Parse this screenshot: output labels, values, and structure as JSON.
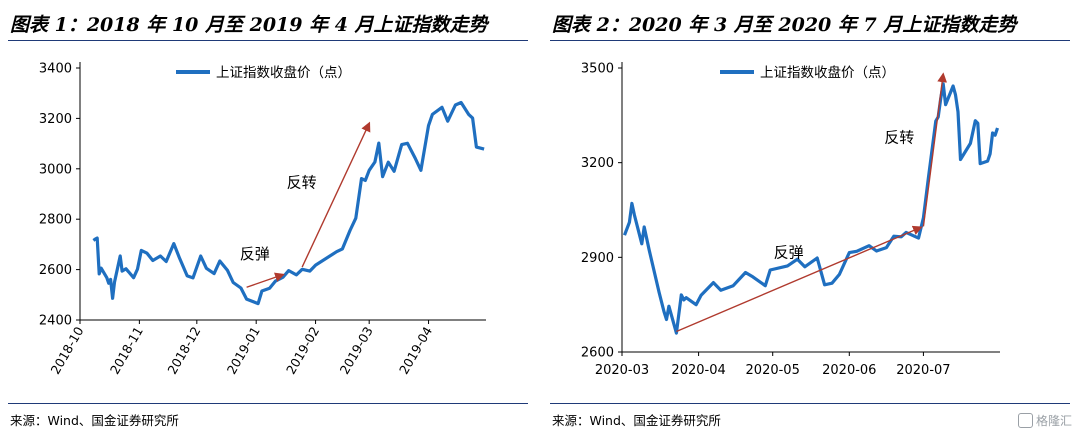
{
  "panels": [
    {
      "title": "图表 1：2018 年 10 月至 2019 年 4 月上证指数走势",
      "source": "来源：Wind、国金证券研究所"
    },
    {
      "title": "图表 2：2020 年 3 月至 2020 年 7 月上证指数走势",
      "source": "来源：Wind、国金证券研究所"
    }
  ],
  "watermark": "格隆汇",
  "chart_data": [
    {
      "type": "line",
      "legend": "上证指数收盘价（点）",
      "legend_position": "top-center",
      "color": "#1f6fc0",
      "annotation_color": "#b03a2e",
      "x_ticks": [
        "2018-10",
        "2018-11",
        "2018-12",
        "2019-01",
        "2019-02",
        "2019-03",
        "2019-04"
      ],
      "y_ticks": [
        2400,
        2600,
        2800,
        3000,
        3200,
        3400
      ],
      "ylim": [
        2400,
        3400
      ],
      "series": [
        {
          "name": "上证指数收盘价（点）",
          "x": [
            "2018-10-08",
            "2018-10-09",
            "2018-10-10",
            "2018-10-11",
            "2018-10-12",
            "2018-10-15",
            "2018-10-16",
            "2018-10-17",
            "2018-10-18",
            "2018-10-19",
            "2018-10-22",
            "2018-10-23",
            "2018-10-25",
            "2018-10-29",
            "2018-10-31",
            "2018-11-02",
            "2018-11-05",
            "2018-11-08",
            "2018-11-12",
            "2018-11-15",
            "2018-11-19",
            "2018-11-22",
            "2018-11-26",
            "2018-11-29",
            "2018-12-03",
            "2018-12-06",
            "2018-12-10",
            "2018-12-13",
            "2018-12-17",
            "2018-12-20",
            "2018-12-24",
            "2018-12-27",
            "2019-01-02",
            "2019-01-04",
            "2019-01-08",
            "2019-01-11",
            "2019-01-15",
            "2019-01-18",
            "2019-01-22",
            "2019-01-25",
            "2019-01-29",
            "2019-02-01",
            "2019-02-12",
            "2019-02-15",
            "2019-02-19",
            "2019-02-22",
            "2019-02-25",
            "2019-02-27",
            "2019-03-01",
            "2019-03-04",
            "2019-03-06",
            "2019-03-08",
            "2019-03-11",
            "2019-03-14",
            "2019-03-18",
            "2019-03-21",
            "2019-03-25",
            "2019-03-28",
            "2019-04-01",
            "2019-04-03",
            "2019-04-08",
            "2019-04-11",
            "2019-04-15",
            "2019-04-18",
            "2019-04-22",
            "2019-04-24",
            "2019-04-26",
            "2019-04-30"
          ],
          "y": [
            2716,
            2721,
            2725,
            2583,
            2606,
            2568,
            2546,
            2561,
            2486,
            2550,
            2654,
            2594,
            2603,
            2568,
            2602,
            2676,
            2665,
            2636,
            2654,
            2632,
            2703,
            2645,
            2575,
            2567,
            2654,
            2605,
            2584,
            2634,
            2597,
            2549,
            2527,
            2483,
            2465,
            2515,
            2526,
            2554,
            2570,
            2596,
            2579,
            2601,
            2594,
            2618,
            2671,
            2682,
            2755,
            2804,
            2961,
            2954,
            2994,
            3027,
            3102,
            2969,
            3026,
            2990,
            3096,
            3101,
            3043,
            2994,
            3171,
            3216,
            3244,
            3189,
            3253,
            3263,
            3215,
            3201,
            3086,
            3078
          ]
        }
      ],
      "annotations": [
        {
          "label": "反弹",
          "from": [
            "2018-12-27",
            2530
          ],
          "to": [
            "2019-01-15",
            2580
          ]
        },
        {
          "label": "反转",
          "from": [
            "2019-01-25",
            2610
          ],
          "to": [
            "2019-03-01",
            3180
          ]
        }
      ]
    },
    {
      "type": "line",
      "legend": "上证指数收盘价（点）",
      "legend_position": "top-center",
      "color": "#1f6fc0",
      "annotation_color": "#b03a2e",
      "x_ticks": [
        "2020-03",
        "2020-04",
        "2020-05",
        "2020-06",
        "2020-07"
      ],
      "y_ticks": [
        2600,
        2900,
        3200,
        3500
      ],
      "ylim": [
        2600,
        3500
      ],
      "series": [
        {
          "name": "上证指数收盘价（点）",
          "x": [
            "2020-03-02",
            "2020-03-04",
            "2020-03-05",
            "2020-03-06",
            "2020-03-09",
            "2020-03-10",
            "2020-03-12",
            "2020-03-16",
            "2020-03-18",
            "2020-03-19",
            "2020-03-20",
            "2020-03-23",
            "2020-03-25",
            "2020-03-26",
            "2020-03-27",
            "2020-03-31",
            "2020-04-02",
            "2020-04-07",
            "2020-04-10",
            "2020-04-15",
            "2020-04-20",
            "2020-04-23",
            "2020-04-28",
            "2020-04-30",
            "2020-05-07",
            "2020-05-11",
            "2020-05-14",
            "2020-05-19",
            "2020-05-22",
            "2020-05-25",
            "2020-05-28",
            "2020-06-01",
            "2020-06-04",
            "2020-06-09",
            "2020-06-12",
            "2020-06-16",
            "2020-06-19",
            "2020-06-22",
            "2020-06-24",
            "2020-06-29",
            "2020-07-01",
            "2020-07-03",
            "2020-07-06",
            "2020-07-07",
            "2020-07-08",
            "2020-07-09",
            "2020-07-10",
            "2020-07-13",
            "2020-07-14",
            "2020-07-15",
            "2020-07-16",
            "2020-07-20",
            "2020-07-22",
            "2020-07-23",
            "2020-07-24",
            "2020-07-27",
            "2020-07-28",
            "2020-07-29",
            "2020-07-30",
            "2020-07-31"
          ],
          "y": [
            2970,
            3011,
            3071,
            3034,
            2943,
            2996,
            2923,
            2789,
            2728,
            2703,
            2745,
            2660,
            2781,
            2765,
            2772,
            2750,
            2780,
            2820,
            2796,
            2810,
            2852,
            2838,
            2810,
            2860,
            2873,
            2894,
            2870,
            2898,
            2813,
            2818,
            2846,
            2915,
            2919,
            2937,
            2920,
            2931,
            2967,
            2965,
            2979,
            2961,
            3025,
            3152,
            3332,
            3345,
            3403,
            3450,
            3384,
            3443,
            3415,
            3361,
            3210,
            3261,
            3333,
            3325,
            3197,
            3205,
            3228,
            3294,
            3287,
            3310
          ]
        }
      ],
      "annotations": [
        {
          "label": "反弹",
          "from": [
            "2020-03-23",
            2665
          ],
          "to": [
            "2020-06-30",
            2995
          ]
        },
        {
          "label": "反转",
          "from": [
            "2020-07-01",
            2998
          ],
          "to": [
            "2020-07-09",
            3480
          ]
        }
      ]
    }
  ]
}
